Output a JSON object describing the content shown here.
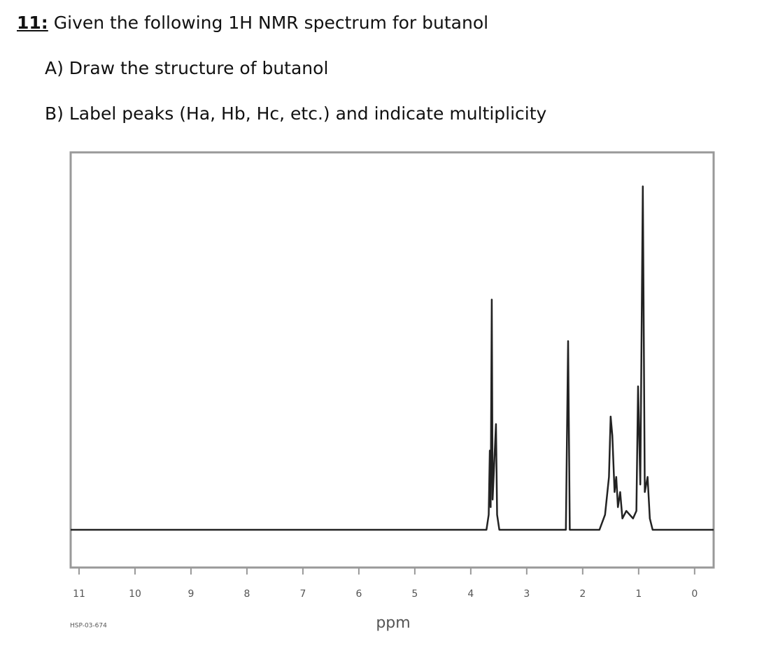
{
  "question": {
    "number": "11:",
    "text": "Given the following 1H NMR spectrum for butanol",
    "parts": [
      "A) Draw the structure of butanol",
      "B) Label peaks (Ha, Hb, Hc, etc.) and indicate multiplicity"
    ]
  },
  "chart_data": {
    "type": "line",
    "xlabel": "ppm",
    "annotation": "HSP-03-674",
    "x": [
      11.15,
      3.72,
      3.68,
      3.66,
      3.645,
      3.625,
      3.61,
      3.55,
      3.53,
      3.49,
      2.3,
      2.26,
      2.23,
      1.7,
      1.6,
      1.53,
      1.5,
      1.47,
      1.43,
      1.4,
      1.37,
      1.33,
      1.29,
      1.22,
      1.1,
      1.04,
      1.01,
      0.97,
      0.925,
      0.89,
      0.84,
      0.8,
      0.75,
      -0.34
    ],
    "series": [
      {
        "color": "#222222",
        "values": [
          0,
          0,
          4,
          21,
          6,
          61,
          8,
          28,
          4,
          0,
          0,
          50,
          0,
          0,
          4,
          14,
          30,
          25,
          10,
          14,
          6,
          10,
          3,
          5,
          3,
          5,
          38,
          12,
          91,
          10,
          14,
          3,
          0,
          0
        ]
      }
    ],
    "xlim": [
      11.15,
      -0.34
    ],
    "ylim": [
      -10,
      100
    ],
    "xticks": [
      11,
      10,
      9,
      8,
      7,
      6,
      5,
      4,
      3,
      2,
      1,
      0
    ]
  }
}
